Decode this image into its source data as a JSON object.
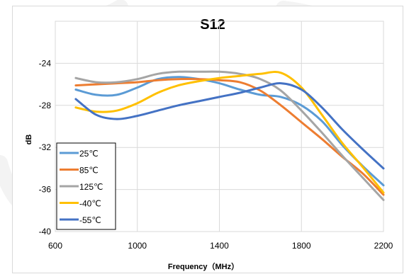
{
  "chart_data": {
    "type": "line",
    "title": "S12",
    "xlabel": "Frequency（MHz）",
    "ylabel": "dB",
    "xlim": [
      600,
      2200
    ],
    "ylim": [
      -40,
      -20
    ],
    "x_ticks": [
      600,
      1000,
      1400,
      1800,
      2200
    ],
    "y_ticks": [
      -24,
      -28,
      -32,
      -36,
      -40
    ],
    "y_tick_labels": [
      "-24",
      "-28",
      "-32",
      "-36",
      "-40"
    ],
    "grid": true,
    "legend_position": "bottom-left",
    "series": [
      {
        "name": "25℃",
        "color": "#5b9bd5",
        "x": [
          700,
          800,
          900,
          1000,
          1100,
          1200,
          1300,
          1400,
          1500,
          1600,
          1700,
          1800,
          1900,
          2000,
          2100,
          2200
        ],
        "y": [
          -26.5,
          -27.0,
          -27.0,
          -26.3,
          -25.5,
          -25.3,
          -25.5,
          -25.9,
          -26.5,
          -27.0,
          -27.2,
          -28.0,
          -29.5,
          -31.8,
          -33.8,
          -35.6
        ]
      },
      {
        "name": "85℃",
        "color": "#ed7d31",
        "x": [
          700,
          800,
          900,
          1000,
          1100,
          1200,
          1300,
          1400,
          1500,
          1600,
          1700,
          1800,
          1900,
          2000,
          2100,
          2200
        ],
        "y": [
          -26.1,
          -26.0,
          -25.9,
          -25.8,
          -25.6,
          -25.5,
          -25.5,
          -25.6,
          -25.8,
          -26.6,
          -28.0,
          -29.6,
          -31.2,
          -32.9,
          -34.5,
          -36.5
        ]
      },
      {
        "name": "125℃",
        "color": "#a5a5a5",
        "x": [
          700,
          800,
          900,
          1000,
          1100,
          1200,
          1300,
          1400,
          1500,
          1600,
          1700,
          1800,
          1900,
          2000,
          2100,
          2200
        ],
        "y": [
          -25.4,
          -25.8,
          -25.8,
          -25.5,
          -25.0,
          -24.8,
          -24.8,
          -24.8,
          -25.0,
          -25.5,
          -26.6,
          -28.5,
          -30.6,
          -32.8,
          -34.9,
          -37.0
        ]
      },
      {
        "name": "-40℃",
        "color": "#ffc000",
        "x": [
          700,
          800,
          900,
          1000,
          1100,
          1200,
          1300,
          1400,
          1500,
          1600,
          1700,
          1800,
          1900,
          2000,
          2100,
          2200
        ],
        "y": [
          -28.2,
          -28.6,
          -28.5,
          -27.8,
          -26.8,
          -26.1,
          -25.7,
          -25.4,
          -25.2,
          -25.0,
          -24.9,
          -26.3,
          -28.9,
          -31.6,
          -33.9,
          -36.3
        ]
      },
      {
        "name": "-55℃",
        "color": "#4472c4",
        "x": [
          700,
          800,
          900,
          1000,
          1100,
          1200,
          1300,
          1400,
          1500,
          1600,
          1700,
          1800,
          1900,
          2000,
          2100,
          2200
        ],
        "y": [
          -27.4,
          -28.9,
          -29.3,
          -29.0,
          -28.5,
          -28.0,
          -27.6,
          -27.2,
          -26.8,
          -26.3,
          -25.9,
          -26.5,
          -28.2,
          -30.3,
          -32.2,
          -34.0
        ]
      }
    ]
  }
}
